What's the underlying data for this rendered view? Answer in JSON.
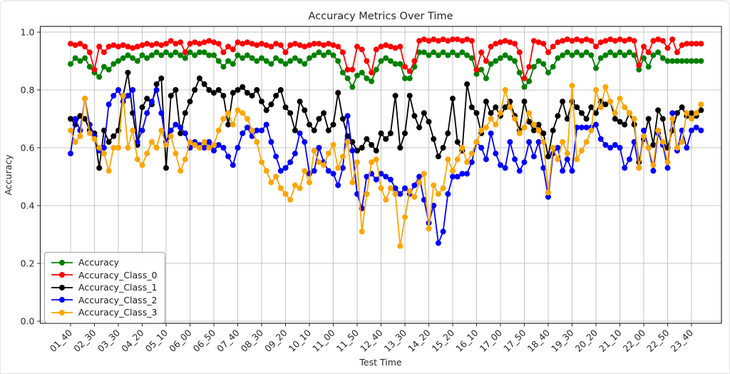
{
  "chart_data": {
    "type": "line",
    "title": "Accuracy Metrics Over Time",
    "xlabel": "Test Time",
    "ylabel": "Accuracy",
    "grid": true,
    "legend_position": "lower left",
    "ylim": [
      0.0,
      1.0
    ],
    "y_ticks": [
      0.0,
      0.2,
      0.4,
      0.6,
      0.8,
      1.0
    ],
    "points_per_tick": 5,
    "x_tick_labels": [
      "01_40",
      "02_30",
      "03_30",
      "04_20",
      "05_10",
      "06_00",
      "06_50",
      "07_40",
      "08_30",
      "09_20",
      "10_10",
      "11_00",
      "11_50",
      "12_40",
      "13_30",
      "14_20",
      "15_20",
      "16_10",
      "17_00",
      "17_50",
      "18_40",
      "19_30",
      "20_20",
      "21_10",
      "22_00",
      "22_50",
      "23_40"
    ],
    "series": [
      {
        "name": "Accuracy",
        "color": "#008000",
        "values": [
          0.89,
          0.91,
          0.9,
          0.91,
          0.88,
          0.86,
          0.845,
          0.88,
          0.87,
          0.89,
          0.9,
          0.91,
          0.92,
          0.91,
          0.9,
          0.92,
          0.91,
          0.92,
          0.93,
          0.92,
          0.93,
          0.92,
          0.93,
          0.92,
          0.91,
          0.93,
          0.92,
          0.93,
          0.93,
          0.92,
          0.92,
          0.9,
          0.88,
          0.9,
          0.89,
          0.92,
          0.91,
          0.92,
          0.91,
          0.9,
          0.91,
          0.9,
          0.89,
          0.91,
          0.9,
          0.89,
          0.9,
          0.91,
          0.9,
          0.89,
          0.91,
          0.92,
          0.93,
          0.92,
          0.93,
          0.92,
          0.9,
          0.86,
          0.84,
          0.81,
          0.85,
          0.86,
          0.84,
          0.83,
          0.87,
          0.9,
          0.91,
          0.9,
          0.89,
          0.89,
          0.84,
          0.84,
          0.88,
          0.93,
          0.93,
          0.92,
          0.93,
          0.92,
          0.93,
          0.92,
          0.93,
          0.92,
          0.93,
          0.92,
          0.91,
          0.855,
          0.87,
          0.84,
          0.89,
          0.9,
          0.91,
          0.92,
          0.91,
          0.9,
          0.86,
          0.81,
          0.83,
          0.88,
          0.9,
          0.89,
          0.86,
          0.88,
          0.91,
          0.92,
          0.93,
          0.92,
          0.93,
          0.92,
          0.93,
          0.92,
          0.875,
          0.91,
          0.92,
          0.93,
          0.92,
          0.93,
          0.92,
          0.93,
          0.92,
          0.87,
          0.91,
          0.88,
          0.92,
          0.93,
          0.91,
          0.9,
          0.9,
          0.9,
          0.9,
          0.9,
          0.9,
          0.9,
          0.9
        ]
      },
      {
        "name": "Accuracy_Class_0",
        "color": "#ff0000",
        "values": [
          0.96,
          0.955,
          0.96,
          0.95,
          0.93,
          0.87,
          0.95,
          0.93,
          0.95,
          0.955,
          0.95,
          0.955,
          0.95,
          0.945,
          0.95,
          0.955,
          0.96,
          0.955,
          0.96,
          0.955,
          0.96,
          0.97,
          0.96,
          0.965,
          0.93,
          0.96,
          0.965,
          0.96,
          0.965,
          0.97,
          0.965,
          0.96,
          0.93,
          0.95,
          0.94,
          0.965,
          0.96,
          0.965,
          0.96,
          0.955,
          0.96,
          0.955,
          0.95,
          0.96,
          0.955,
          0.93,
          0.955,
          0.96,
          0.955,
          0.95,
          0.955,
          0.96,
          0.96,
          0.955,
          0.96,
          0.955,
          0.95,
          0.93,
          0.87,
          0.87,
          0.95,
          0.94,
          0.9,
          0.86,
          0.94,
          0.95,
          0.955,
          0.95,
          0.945,
          0.95,
          0.88,
          0.865,
          0.9,
          0.97,
          0.975,
          0.97,
          0.975,
          0.97,
          0.975,
          0.97,
          0.975,
          0.975,
          0.97,
          0.975,
          0.97,
          0.87,
          0.93,
          0.9,
          0.95,
          0.96,
          0.965,
          0.97,
          0.965,
          0.96,
          0.93,
          0.84,
          0.88,
          0.97,
          0.965,
          0.96,
          0.93,
          0.95,
          0.965,
          0.97,
          0.975,
          0.97,
          0.975,
          0.97,
          0.975,
          0.97,
          0.95,
          0.965,
          0.97,
          0.975,
          0.97,
          0.975,
          0.97,
          0.975,
          0.97,
          0.885,
          0.95,
          0.93,
          0.97,
          0.975,
          0.97,
          0.945,
          0.975,
          0.93,
          0.955,
          0.96,
          0.96,
          0.96,
          0.96
        ]
      },
      {
        "name": "Accuracy_Class_1",
        "color": "#000000",
        "values": [
          0.7,
          0.68,
          0.71,
          0.7,
          0.66,
          0.65,
          0.53,
          0.66,
          0.62,
          0.64,
          0.66,
          0.78,
          0.86,
          0.72,
          0.61,
          0.74,
          0.77,
          0.75,
          0.82,
          0.84,
          0.53,
          0.78,
          0.8,
          0.65,
          0.72,
          0.76,
          0.8,
          0.84,
          0.82,
          0.8,
          0.79,
          0.8,
          0.78,
          0.68,
          0.79,
          0.8,
          0.81,
          0.79,
          0.78,
          0.8,
          0.76,
          0.73,
          0.75,
          0.78,
          0.8,
          0.74,
          0.72,
          0.66,
          0.76,
          0.73,
          0.68,
          0.66,
          0.7,
          0.72,
          0.66,
          0.68,
          0.79,
          0.7,
          0.64,
          0.62,
          0.59,
          0.6,
          0.63,
          0.61,
          0.59,
          0.65,
          0.63,
          0.65,
          0.78,
          0.6,
          0.65,
          0.78,
          0.71,
          0.67,
          0.72,
          0.69,
          0.63,
          0.57,
          0.6,
          0.65,
          0.77,
          0.62,
          0.59,
          0.82,
          0.74,
          0.72,
          0.65,
          0.76,
          0.72,
          0.74,
          0.71,
          0.74,
          0.76,
          0.71,
          0.66,
          0.76,
          0.69,
          0.66,
          0.68,
          0.65,
          0.57,
          0.66,
          0.71,
          0.76,
          0.7,
          0.76,
          0.74,
          0.72,
          0.7,
          0.74,
          0.72,
          0.76,
          0.75,
          0.76,
          0.7,
          0.69,
          0.68,
          0.72,
          0.68,
          0.55,
          0.63,
          0.7,
          0.61,
          0.73,
          0.7,
          0.6,
          0.66,
          0.72,
          0.74,
          0.71,
          0.72,
          0.71,
          0.73
        ]
      },
      {
        "name": "Accuracy_Class_2",
        "color": "#0000ff",
        "values": [
          0.58,
          0.7,
          0.66,
          0.77,
          0.68,
          0.64,
          0.59,
          0.6,
          0.75,
          0.78,
          0.8,
          0.76,
          0.78,
          0.8,
          0.62,
          0.66,
          0.72,
          0.76,
          0.8,
          0.72,
          0.62,
          0.66,
          0.68,
          0.67,
          0.65,
          0.6,
          0.62,
          0.61,
          0.6,
          0.62,
          0.59,
          0.61,
          0.6,
          0.57,
          0.54,
          0.6,
          0.65,
          0.67,
          0.64,
          0.66,
          0.66,
          0.68,
          0.62,
          0.57,
          0.52,
          0.53,
          0.55,
          0.58,
          0.65,
          0.62,
          0.51,
          0.52,
          0.6,
          0.55,
          0.52,
          0.51,
          0.47,
          0.53,
          0.71,
          0.59,
          0.44,
          0.39,
          0.5,
          0.51,
          0.49,
          0.51,
          0.5,
          0.49,
          0.46,
          0.44,
          0.46,
          0.44,
          0.47,
          0.5,
          0.42,
          0.34,
          0.4,
          0.27,
          0.31,
          0.44,
          0.5,
          0.5,
          0.51,
          0.51,
          0.55,
          0.62,
          0.6,
          0.56,
          0.65,
          0.58,
          0.54,
          0.53,
          0.62,
          0.56,
          0.52,
          0.55,
          0.62,
          0.57,
          0.62,
          0.53,
          0.43,
          0.58,
          0.6,
          0.52,
          0.56,
          0.52,
          0.67,
          0.67,
          0.67,
          0.67,
          0.68,
          0.63,
          0.61,
          0.6,
          0.61,
          0.6,
          0.53,
          0.56,
          0.62,
          0.53,
          0.66,
          0.6,
          0.52,
          0.65,
          0.61,
          0.53,
          0.72,
          0.59,
          0.66,
          0.6,
          0.66,
          0.67,
          0.66
        ]
      },
      {
        "name": "Accuracy_Class_3",
        "color": "#ffa500",
        "values": [
          0.66,
          0.62,
          0.64,
          0.77,
          0.65,
          0.63,
          0.6,
          0.58,
          0.52,
          0.6,
          0.6,
          0.78,
          0.6,
          0.66,
          0.56,
          0.54,
          0.58,
          0.62,
          0.6,
          0.66,
          0.61,
          0.64,
          0.58,
          0.52,
          0.56,
          0.62,
          0.61,
          0.6,
          0.62,
          0.6,
          0.61,
          0.66,
          0.7,
          0.72,
          0.68,
          0.73,
          0.72,
          0.7,
          0.66,
          0.62,
          0.55,
          0.52,
          0.48,
          0.5,
          0.46,
          0.44,
          0.42,
          0.47,
          0.46,
          0.52,
          0.48,
          0.59,
          0.55,
          0.54,
          0.58,
          0.61,
          0.53,
          0.57,
          0.62,
          0.48,
          0.55,
          0.31,
          0.44,
          0.55,
          0.56,
          0.46,
          0.42,
          0.46,
          0.44,
          0.26,
          0.36,
          0.45,
          0.43,
          0.48,
          0.51,
          0.32,
          0.47,
          0.44,
          0.46,
          0.56,
          0.52,
          0.56,
          0.6,
          0.55,
          0.58,
          0.62,
          0.66,
          0.67,
          0.7,
          0.68,
          0.72,
          0.8,
          0.74,
          0.7,
          0.65,
          0.67,
          0.72,
          0.68,
          0.66,
          0.62,
          0.445,
          0.6,
          0.56,
          0.62,
          0.58,
          0.815,
          0.56,
          0.59,
          0.62,
          0.66,
          0.8,
          0.74,
          0.81,
          0.76,
          0.72,
          0.77,
          0.74,
          0.72,
          0.7,
          0.53,
          0.64,
          0.6,
          0.54,
          0.66,
          0.62,
          0.55,
          0.7,
          0.6,
          0.62,
          0.72,
          0.7,
          0.72,
          0.75
        ]
      }
    ]
  }
}
